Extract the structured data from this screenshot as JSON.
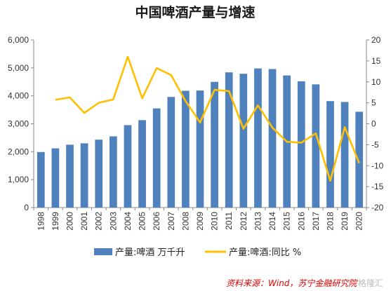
{
  "chart_data": {
    "type": "bar+line",
    "title": "中国啤酒产量与增速",
    "categories": [
      "1998",
      "1999",
      "2000",
      "2001",
      "2002",
      "2003",
      "2004",
      "2005",
      "2006",
      "2007",
      "2008",
      "2009",
      "2010",
      "2011",
      "2012",
      "2013",
      "2014",
      "2015",
      "2016",
      "2017",
      "2018",
      "2019",
      "2020"
    ],
    "series": [
      {
        "name": "产量:啤酒 万千升",
        "type": "bar",
        "axis": "left",
        "color": "#4f81bd",
        "values": [
          1988,
          2120,
          2250,
          2300,
          2430,
          2550,
          2950,
          3130,
          3550,
          3960,
          4180,
          4190,
          4500,
          4840,
          4790,
          4980,
          4960,
          4730,
          4520,
          4410,
          3810,
          3780,
          3430
        ]
      },
      {
        "name": "产量:啤酒:同比 %",
        "type": "line",
        "axis": "right",
        "color": "#ffc000",
        "values": [
          null,
          5.7,
          6.3,
          2.6,
          5.0,
          5.8,
          16.0,
          6.1,
          13.3,
          11.6,
          5.4,
          0.3,
          8.1,
          7.8,
          -1.2,
          4.4,
          -0.9,
          -4.3,
          -4.5,
          -2.3,
          -13.6,
          -0.8,
          -9.4
        ]
      }
    ],
    "y_left": {
      "min": 0,
      "max": 6000,
      "ticks": [
        "0",
        "1,000",
        "2,000",
        "3,000",
        "4,000",
        "5,000",
        "6,000"
      ]
    },
    "y_right": {
      "min": -20,
      "max": 20,
      "ticks": [
        "-20",
        "-15",
        "-10",
        "-5",
        "0",
        "5",
        "10",
        "15",
        "20"
      ]
    },
    "grid": false,
    "legend_position": "bottom"
  },
  "footer": {
    "source": "资料来源：Wind，苏宁金融研究院",
    "watermark": "格隆汇"
  }
}
